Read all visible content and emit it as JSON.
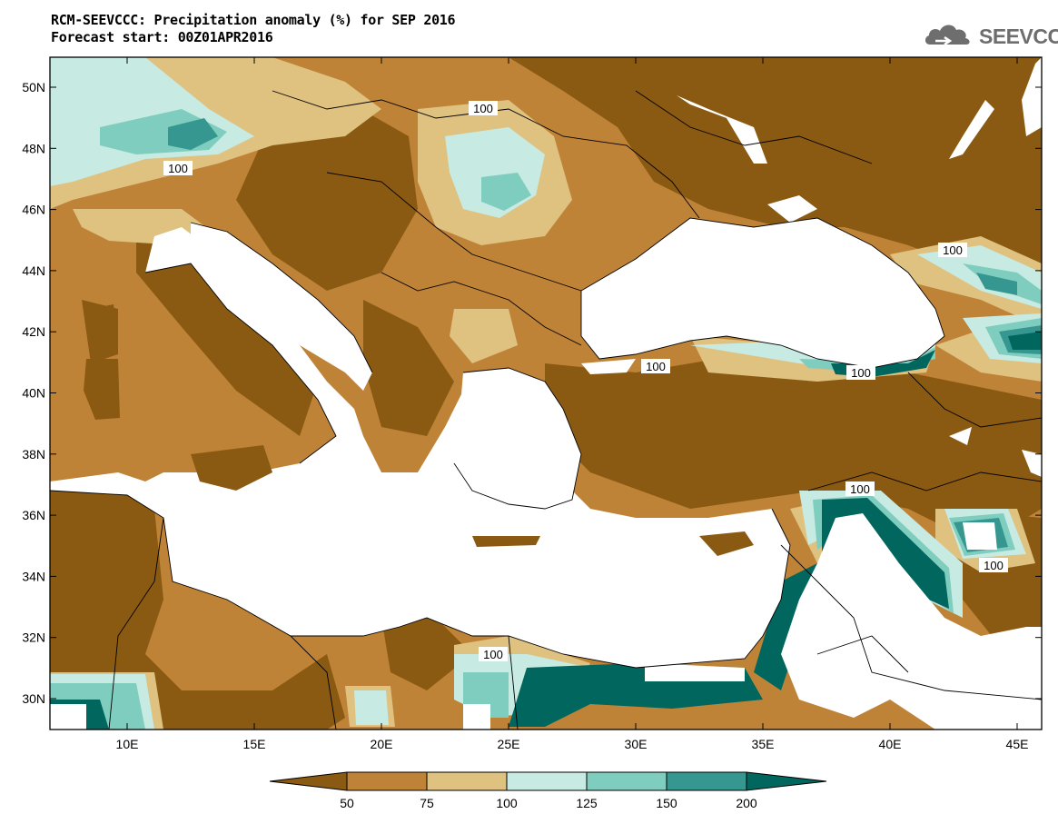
{
  "title": {
    "line1": "RCM-SEEVCCC: Precipitation anomaly (%) for SEP 2016",
    "line2": "Forecast start: 00Z01APR2016"
  },
  "logo": {
    "text": "SEEVCCC",
    "icon": "cloud-icon"
  },
  "map": {
    "lon_range": [
      7,
      46
    ],
    "lat_range": [
      29,
      51
    ],
    "lat_ticks": [
      "30N",
      "32N",
      "34N",
      "36N",
      "38N",
      "40N",
      "42N",
      "44N",
      "46N",
      "48N",
      "50N"
    ],
    "lon_ticks": [
      "10E",
      "15E",
      "20E",
      "25E",
      "30E",
      "35E",
      "40E",
      "45E"
    ],
    "contour_label": "100",
    "colors": {
      "lt50": "#8a5a13",
      "c50_75": "#bf8338",
      "c75_100": "#dfc180",
      "c100_125": "#c7ebe3",
      "c125_150": "#7fcdbe",
      "c150_200": "#35978f",
      "gt200": "#01665e",
      "sea": "#ffffff"
    }
  },
  "colorbar": {
    "labels": [
      "50",
      "75",
      "100",
      "125",
      "150",
      "200"
    ],
    "colors": [
      "#8a5a13",
      "#bf8338",
      "#dfc180",
      "#c7ebe3",
      "#7fcdbe",
      "#35978f",
      "#01665e"
    ]
  }
}
